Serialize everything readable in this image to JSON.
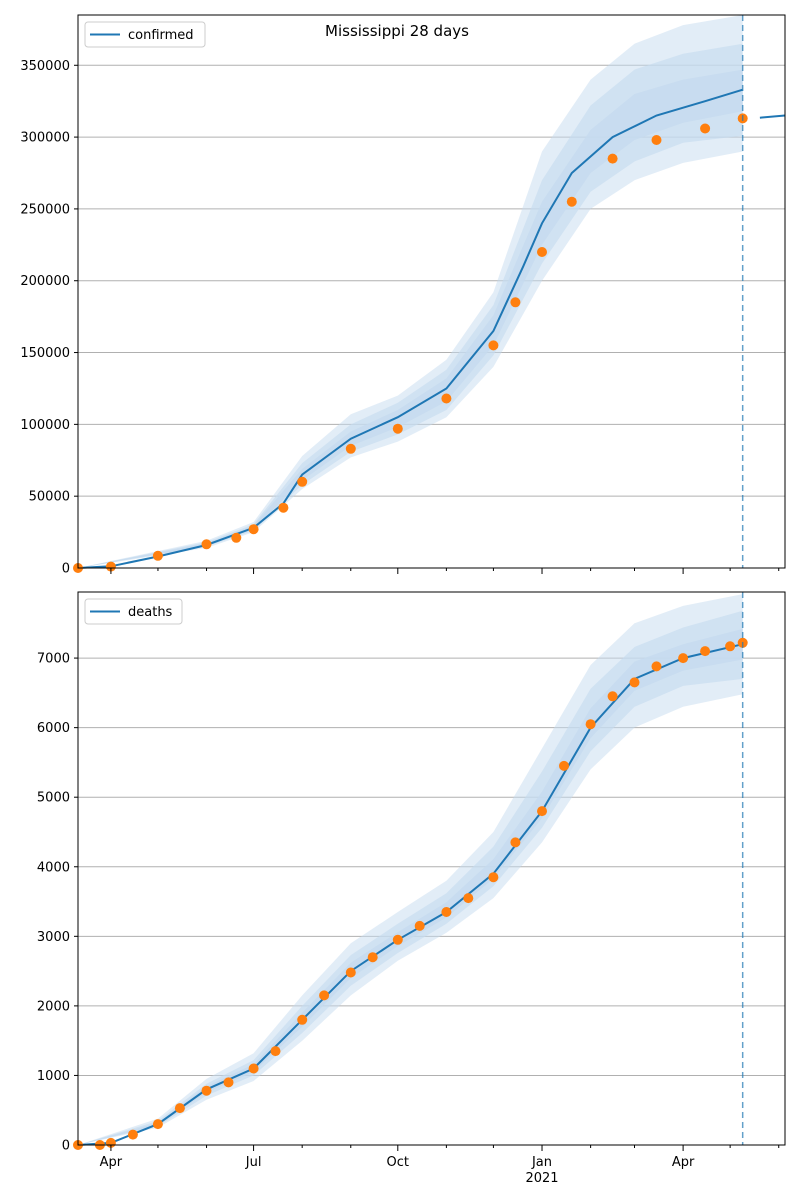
{
  "figure": {
    "title": "Mississippi 28 days",
    "shared_x_tick_labels": [
      "Apr",
      "Jul",
      "Oct",
      "Jan",
      "Apr"
    ],
    "x_year_label": "2021",
    "colors": {
      "model_line": "#1f77b4",
      "observed": "#ff7f0e",
      "band": "#c6dbef",
      "grid": "#b0b0b0",
      "forecast_divider": "#1f77b4"
    }
  },
  "chart_data": [
    {
      "type": "line",
      "legend": [
        "confirmed"
      ],
      "legend_position": "top-left",
      "grid": "horizontal",
      "x_range": [
        "2020-03-11",
        "2021-06-05"
      ],
      "forecast_start": "2021-05-09",
      "ylim": [
        0,
        385000
      ],
      "yticks": [
        0,
        50000,
        100000,
        150000,
        200000,
        250000,
        300000,
        350000
      ],
      "ytick_labels": [
        "0",
        "50000",
        "100000",
        "150000",
        "200000",
        "250000",
        "300000",
        "350000"
      ],
      "series": [
        {
          "name": "confirmed",
          "style": "line",
          "points": [
            [
              "2020-03-11",
              0
            ],
            [
              "2020-04-01",
              1200
            ],
            [
              "2020-05-01",
              8000
            ],
            [
              "2020-06-01",
              16000
            ],
            [
              "2020-07-01",
              28000
            ],
            [
              "2020-07-20",
              45000
            ],
            [
              "2020-08-01",
              65000
            ],
            [
              "2020-09-01",
              90000
            ],
            [
              "2020-10-01",
              105000
            ],
            [
              "2020-11-01",
              125000
            ],
            [
              "2020-12-01",
              165000
            ],
            [
              "2020-12-20",
              210000
            ],
            [
              "2021-01-01",
              240000
            ],
            [
              "2021-01-20",
              275000
            ],
            [
              "2021-02-15",
              300000
            ],
            [
              "2021-03-15",
              315000
            ],
            [
              "2021-04-15",
              325000
            ],
            [
              "2021-05-09",
              333000
            ],
            [
              "2021-05-20",
              313500
            ],
            [
              "2021-06-05",
              315000
            ]
          ]
        },
        {
          "name": "observed",
          "style": "markers",
          "points": [
            [
              "2020-03-11",
              0
            ],
            [
              "2020-04-01",
              1000
            ],
            [
              "2020-05-01",
              8500
            ],
            [
              "2020-06-01",
              16500
            ],
            [
              "2020-06-20",
              21000
            ],
            [
              "2020-07-01",
              27000
            ],
            [
              "2020-07-20",
              42000
            ],
            [
              "2020-08-01",
              60000
            ],
            [
              "2020-09-01",
              83000
            ],
            [
              "2020-10-01",
              97000
            ],
            [
              "2020-11-01",
              118000
            ],
            [
              "2020-12-01",
              155000
            ],
            [
              "2020-12-15",
              185000
            ],
            [
              "2021-01-01",
              220000
            ],
            [
              "2021-01-20",
              255000
            ],
            [
              "2021-02-15",
              285000
            ],
            [
              "2021-03-15",
              298000
            ],
            [
              "2021-04-15",
              306000
            ],
            [
              "2021-05-09",
              313000
            ]
          ]
        }
      ],
      "bands": [
        {
          "level": "outer",
          "points": [
            [
              "2020-03-11",
              0,
              0
            ],
            [
              "2020-06-01",
              14000,
              19000
            ],
            [
              "2020-07-01",
              25000,
              32000
            ],
            [
              "2020-08-01",
              55000,
              78000
            ],
            [
              "2020-09-01",
              77000,
              107000
            ],
            [
              "2020-10-01",
              88000,
              120000
            ],
            [
              "2020-11-01",
              105000,
              145000
            ],
            [
              "2020-12-01",
              140000,
              192000
            ],
            [
              "2021-01-01",
              200000,
              290000
            ],
            [
              "2021-02-01",
              250000,
              340000
            ],
            [
              "2021-03-01",
              270000,
              365000
            ],
            [
              "2021-04-01",
              282000,
              378000
            ],
            [
              "2021-05-09",
              290000,
              385000
            ]
          ]
        },
        {
          "level": "middle",
          "points": [
            [
              "2020-03-11",
              0,
              0
            ],
            [
              "2020-06-01",
              15000,
              18000
            ],
            [
              "2020-07-01",
              26000,
              30500
            ],
            [
              "2020-08-01",
              58000,
              73000
            ],
            [
              "2020-09-01",
              81000,
              100000
            ],
            [
              "2020-10-01",
              93000,
              115000
            ],
            [
              "2020-11-01",
              110000,
              138000
            ],
            [
              "2020-12-01",
              148000,
              183000
            ],
            [
              "2021-01-01",
              212000,
              270000
            ],
            [
              "2021-02-01",
              262000,
              322000
            ],
            [
              "2021-03-01",
              283000,
              347000
            ],
            [
              "2021-04-01",
              296000,
              358000
            ],
            [
              "2021-05-09",
              301000,
              365000
            ]
          ]
        },
        {
          "level": "inner",
          "points": [
            [
              "2020-03-11",
              0,
              0
            ],
            [
              "2020-06-01",
              15500,
              17200
            ],
            [
              "2020-07-01",
              27000,
              29500
            ],
            [
              "2020-08-01",
              61000,
              69000
            ],
            [
              "2020-09-01",
              85000,
              95000
            ],
            [
              "2020-10-01",
              98000,
              110000
            ],
            [
              "2020-11-01",
              116000,
              132000
            ],
            [
              "2020-12-01",
              155000,
              176000
            ],
            [
              "2021-01-01",
              225000,
              255000
            ],
            [
              "2021-02-01",
              275000,
              305000
            ],
            [
              "2021-03-01",
              298000,
              330000
            ],
            [
              "2021-04-01",
              310000,
              340000
            ],
            [
              "2021-05-09",
              318000,
              347000
            ]
          ]
        }
      ]
    },
    {
      "type": "line",
      "legend": [
        "deaths"
      ],
      "legend_position": "top-left",
      "grid": "horizontal",
      "x_range": [
        "2020-03-11",
        "2021-06-05"
      ],
      "forecast_start": "2021-05-09",
      "ylim": [
        0,
        7950
      ],
      "yticks": [
        0,
        1000,
        2000,
        3000,
        4000,
        5000,
        6000,
        7000
      ],
      "ytick_labels": [
        "0",
        "1000",
        "2000",
        "3000",
        "4000",
        "5000",
        "6000",
        "7000"
      ],
      "series": [
        {
          "name": "deaths",
          "style": "line",
          "points": [
            [
              "2020-03-11",
              0
            ],
            [
              "2020-04-01",
              30
            ],
            [
              "2020-05-01",
              300
            ],
            [
              "2020-06-01",
              800
            ],
            [
              "2020-07-01",
              1100
            ],
            [
              "2020-08-01",
              1800
            ],
            [
              "2020-09-01",
              2500
            ],
            [
              "2020-10-01",
              2950
            ],
            [
              "2020-11-01",
              3350
            ],
            [
              "2020-12-01",
              3900
            ],
            [
              "2021-01-01",
              4800
            ],
            [
              "2021-02-01",
              6000
            ],
            [
              "2021-03-01",
              6700
            ],
            [
              "2021-04-01",
              7000
            ],
            [
              "2021-05-09",
              7200
            ],
            [
              "2021-06-05",
              7290
            ]
          ]
        },
        {
          "name": "observed",
          "style": "markers",
          "points": [
            [
              "2020-03-11",
              0
            ],
            [
              "2020-03-25",
              0
            ],
            [
              "2020-04-01",
              30
            ],
            [
              "2020-04-15",
              150
            ],
            [
              "2020-05-01",
              300
            ],
            [
              "2020-05-15",
              530
            ],
            [
              "2020-06-01",
              780
            ],
            [
              "2020-06-15",
              900
            ],
            [
              "2020-07-01",
              1100
            ],
            [
              "2020-07-15",
              1350
            ],
            [
              "2020-08-01",
              1800
            ],
            [
              "2020-08-15",
              2150
            ],
            [
              "2020-09-01",
              2480
            ],
            [
              "2020-09-15",
              2700
            ],
            [
              "2020-10-01",
              2950
            ],
            [
              "2020-10-15",
              3150
            ],
            [
              "2020-11-01",
              3350
            ],
            [
              "2020-11-15",
              3550
            ],
            [
              "2020-12-01",
              3850
            ],
            [
              "2020-12-15",
              4350
            ],
            [
              "2021-01-01",
              4800
            ],
            [
              "2021-01-15",
              5450
            ],
            [
              "2021-02-01",
              6050
            ],
            [
              "2021-02-15",
              6450
            ],
            [
              "2021-03-01",
              6650
            ],
            [
              "2021-03-15",
              6880
            ],
            [
              "2021-04-01",
              7000
            ],
            [
              "2021-04-15",
              7100
            ],
            [
              "2021-05-01",
              7170
            ],
            [
              "2021-05-09",
              7220
            ]
          ]
        }
      ],
      "bands": [
        {
          "level": "outer",
          "points": [
            [
              "2020-03-11",
              0,
              0
            ],
            [
              "2020-05-01",
              250,
              380
            ],
            [
              "2020-06-01",
              650,
              950
            ],
            [
              "2020-07-01",
              920,
              1320
            ],
            [
              "2020-08-01",
              1500,
              2150
            ],
            [
              "2020-09-01",
              2150,
              2900
            ],
            [
              "2020-10-01",
              2650,
              3350
            ],
            [
              "2020-11-01",
              3050,
              3800
            ],
            [
              "2020-12-01",
              3550,
              4500
            ],
            [
              "2021-01-01",
              4350,
              5700
            ],
            [
              "2021-02-01",
              5400,
              6900
            ],
            [
              "2021-03-01",
              6000,
              7500
            ],
            [
              "2021-04-01",
              6300,
              7750
            ],
            [
              "2021-05-09",
              6480,
              7920
            ]
          ]
        },
        {
          "level": "middle",
          "points": [
            [
              "2020-03-11",
              0,
              0
            ],
            [
              "2020-05-01",
              270,
              345
            ],
            [
              "2020-06-01",
              710,
              880
            ],
            [
              "2020-07-01",
              1000,
              1220
            ],
            [
              "2020-08-01",
              1610,
              2000
            ],
            [
              "2020-09-01",
              2290,
              2730
            ],
            [
              "2020-10-01",
              2760,
              3180
            ],
            [
              "2020-11-01",
              3180,
              3620
            ],
            [
              "2020-12-01",
              3720,
              4290
            ],
            [
              "2021-01-01",
              4560,
              5370
            ],
            [
              "2021-02-01",
              5660,
              6560
            ],
            [
              "2021-03-01",
              6300,
              7160
            ],
            [
              "2021-04-01",
              6600,
              7440
            ],
            [
              "2021-05-09",
              6700,
              7680
            ]
          ]
        },
        {
          "level": "inner",
          "points": [
            [
              "2020-03-11",
              0,
              0
            ],
            [
              "2020-05-01",
              285,
              320
            ],
            [
              "2020-06-01",
              755,
              845
            ],
            [
              "2020-07-01",
              1050,
              1160
            ],
            [
              "2020-08-01",
              1700,
              1900
            ],
            [
              "2020-09-01",
              2400,
              2620
            ],
            [
              "2020-10-01",
              2860,
              3060
            ],
            [
              "2020-11-01",
              3270,
              3490
            ],
            [
              "2020-12-01",
              3830,
              4110
            ],
            [
              "2021-01-01",
              4700,
              5080
            ],
            [
              "2021-02-01",
              5850,
              6280
            ],
            [
              "2021-03-01",
              6530,
              6950
            ],
            [
              "2021-04-01",
              6820,
              7200
            ],
            [
              "2021-05-09",
              6980,
              7420
            ]
          ]
        }
      ]
    }
  ]
}
